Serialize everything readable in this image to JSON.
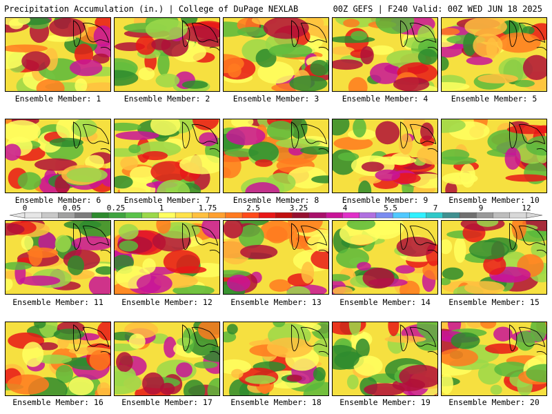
{
  "header": {
    "title_left": "Precipitation Accumulation (in.) | College of DuPage NEXLAB",
    "title_right": "00Z GEFS | F240 Valid: 00Z WED JUN 18 2025"
  },
  "members": [
    {
      "label": "Ensemble Member: 1"
    },
    {
      "label": "Ensemble Member: 2"
    },
    {
      "label": "Ensemble Member: 3"
    },
    {
      "label": "Ensemble Member: 4"
    },
    {
      "label": "Ensemble Member: 5"
    },
    {
      "label": "Ensemble Member: 6"
    },
    {
      "label": "Ensemble Member: 7"
    },
    {
      "label": "Ensemble Member: 8"
    },
    {
      "label": "Ensemble Member: 9"
    },
    {
      "label": "Ensemble Member: 10"
    },
    {
      "label": "Ensemble Member: 11"
    },
    {
      "label": "Ensemble Member: 12"
    },
    {
      "label": "Ensemble Member: 13"
    },
    {
      "label": "Ensemble Member: 14"
    },
    {
      "label": "Ensemble Member: 15"
    },
    {
      "label": "Ensemble Member: 16"
    },
    {
      "label": "Ensemble Member: 17"
    },
    {
      "label": "Ensemble Member: 18"
    },
    {
      "label": "Ensemble Member: 19"
    },
    {
      "label": "Ensemble Member: 20"
    }
  ],
  "legend": {
    "ticks": [
      "0",
      "0.05",
      "0.25",
      "1",
      "1.75",
      "2.5",
      "3.25",
      "4",
      "5.5",
      "7",
      "9",
      "12"
    ],
    "colors": [
      "#e6e6e6",
      "#c8c8c8",
      "#a0a0a0",
      "#7c7c7c",
      "#2e8b2e",
      "#3fa33f",
      "#5ac24a",
      "#9bd84a",
      "#ffff60",
      "#ffe24a",
      "#ffc040",
      "#ffa030",
      "#ff7a20",
      "#ff4a1a",
      "#e81818",
      "#c01010",
      "#961030",
      "#a8106a",
      "#c81498",
      "#e030c8",
      "#b070e0",
      "#7a8cf0",
      "#50c8ff",
      "#30f0ff",
      "#30c8c8",
      "#409090",
      "#707070",
      "#999999",
      "#bdbdbd",
      "#d8d8d8"
    ]
  }
}
